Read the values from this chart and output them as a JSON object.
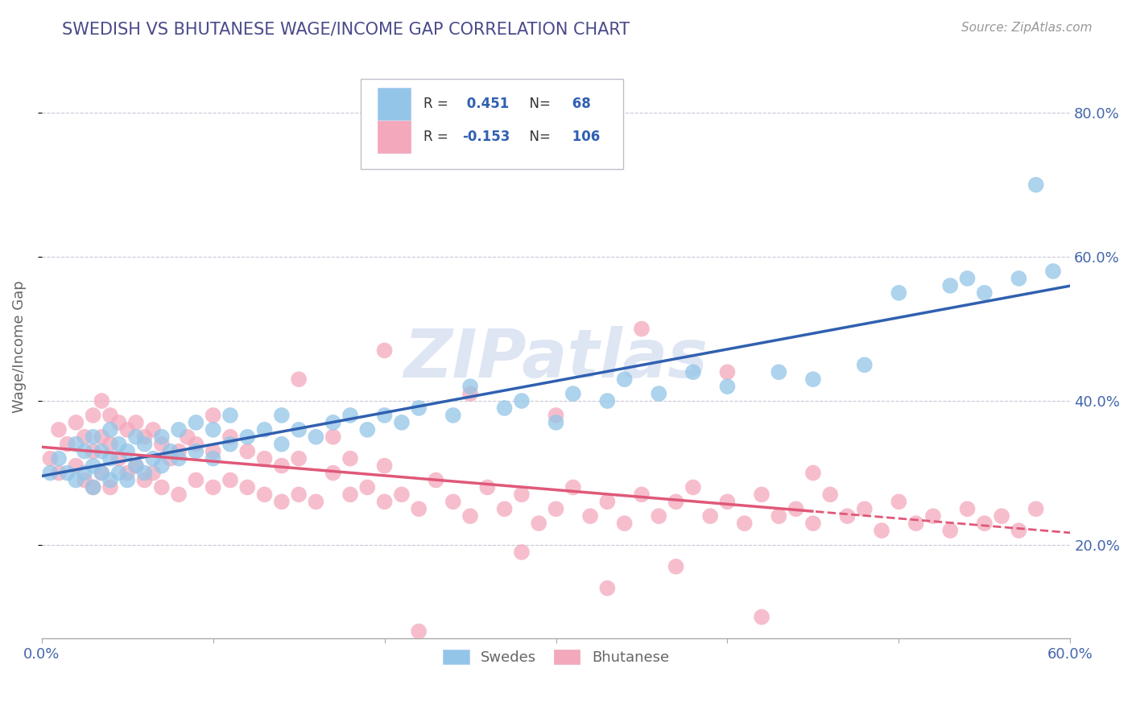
{
  "title": "SWEDISH VS BHUTANESE WAGE/INCOME GAP CORRELATION CHART",
  "source": "Source: ZipAtlas.com",
  "ylabel": "Wage/Income Gap",
  "xlim": [
    0.0,
    0.6
  ],
  "ylim": [
    0.07,
    0.88
  ],
  "yticks": [
    0.2,
    0.4,
    0.6,
    0.8
  ],
  "yticklabels": [
    "20.0%",
    "40.0%",
    "60.0%",
    "80.0%"
  ],
  "xtick_positions": [
    0.0,
    0.1,
    0.2,
    0.3,
    0.4,
    0.5,
    0.6
  ],
  "xticklabels": [
    "0.0%",
    "",
    "",
    "",
    "",
    "",
    "60.0%"
  ],
  "swedish_R": 0.451,
  "swedish_N": 68,
  "bhutanese_R": -0.153,
  "bhutanese_N": 106,
  "swedish_color": "#92C5E8",
  "bhutanese_color": "#F4A8BC",
  "swedish_line_color": "#3060B0",
  "bhutanese_line_color": "#E05878",
  "watermark": "ZIPatlas",
  "title_color": "#4A4A8A",
  "watermark_color": "#C8D4EC",
  "tick_color": "#4466AA",
  "label_color": "#666666",
  "legend_text_color": "#333333",
  "legend_val_color": "#3060B0",
  "swedish_x": [
    0.005,
    0.01,
    0.015,
    0.02,
    0.02,
    0.025,
    0.025,
    0.03,
    0.03,
    0.03,
    0.035,
    0.035,
    0.04,
    0.04,
    0.04,
    0.045,
    0.045,
    0.05,
    0.05,
    0.055,
    0.055,
    0.06,
    0.06,
    0.065,
    0.07,
    0.07,
    0.075,
    0.08,
    0.08,
    0.09,
    0.09,
    0.1,
    0.1,
    0.11,
    0.11,
    0.12,
    0.13,
    0.14,
    0.14,
    0.15,
    0.16,
    0.17,
    0.18,
    0.19,
    0.2,
    0.21,
    0.22,
    0.24,
    0.25,
    0.27,
    0.28,
    0.3,
    0.31,
    0.33,
    0.34,
    0.36,
    0.38,
    0.4,
    0.43,
    0.45,
    0.48,
    0.5,
    0.53,
    0.54,
    0.55,
    0.57,
    0.58,
    0.59
  ],
  "swedish_y": [
    0.3,
    0.32,
    0.3,
    0.29,
    0.34,
    0.3,
    0.33,
    0.28,
    0.31,
    0.35,
    0.3,
    0.33,
    0.29,
    0.32,
    0.36,
    0.3,
    0.34,
    0.29,
    0.33,
    0.31,
    0.35,
    0.3,
    0.34,
    0.32,
    0.31,
    0.35,
    0.33,
    0.32,
    0.36,
    0.33,
    0.37,
    0.32,
    0.36,
    0.34,
    0.38,
    0.35,
    0.36,
    0.34,
    0.38,
    0.36,
    0.35,
    0.37,
    0.38,
    0.36,
    0.38,
    0.37,
    0.39,
    0.38,
    0.42,
    0.39,
    0.4,
    0.37,
    0.41,
    0.4,
    0.43,
    0.41,
    0.44,
    0.42,
    0.44,
    0.43,
    0.45,
    0.55,
    0.56,
    0.57,
    0.55,
    0.57,
    0.7,
    0.58
  ],
  "bhutanese_x": [
    0.005,
    0.01,
    0.01,
    0.015,
    0.02,
    0.02,
    0.025,
    0.025,
    0.03,
    0.03,
    0.03,
    0.035,
    0.035,
    0.035,
    0.04,
    0.04,
    0.04,
    0.045,
    0.045,
    0.05,
    0.05,
    0.055,
    0.055,
    0.06,
    0.06,
    0.065,
    0.065,
    0.07,
    0.07,
    0.075,
    0.08,
    0.08,
    0.085,
    0.09,
    0.09,
    0.1,
    0.1,
    0.1,
    0.11,
    0.11,
    0.12,
    0.12,
    0.13,
    0.13,
    0.14,
    0.14,
    0.15,
    0.15,
    0.16,
    0.17,
    0.17,
    0.18,
    0.18,
    0.19,
    0.2,
    0.2,
    0.21,
    0.22,
    0.23,
    0.24,
    0.25,
    0.26,
    0.27,
    0.28,
    0.29,
    0.3,
    0.31,
    0.32,
    0.33,
    0.34,
    0.35,
    0.36,
    0.37,
    0.38,
    0.39,
    0.4,
    0.41,
    0.42,
    0.43,
    0.44,
    0.45,
    0.46,
    0.47,
    0.48,
    0.49,
    0.5,
    0.51,
    0.52,
    0.53,
    0.54,
    0.55,
    0.56,
    0.57,
    0.58,
    0.3,
    0.2,
    0.15,
    0.25,
    0.35,
    0.4,
    0.28,
    0.33,
    0.42,
    0.37,
    0.45,
    0.22
  ],
  "bhutanese_y": [
    0.32,
    0.3,
    0.36,
    0.34,
    0.31,
    0.37,
    0.29,
    0.35,
    0.28,
    0.33,
    0.38,
    0.3,
    0.35,
    0.4,
    0.28,
    0.34,
    0.38,
    0.32,
    0.37,
    0.3,
    0.36,
    0.31,
    0.37,
    0.29,
    0.35,
    0.3,
    0.36,
    0.28,
    0.34,
    0.32,
    0.27,
    0.33,
    0.35,
    0.29,
    0.34,
    0.28,
    0.33,
    0.38,
    0.29,
    0.35,
    0.28,
    0.33,
    0.27,
    0.32,
    0.26,
    0.31,
    0.27,
    0.32,
    0.26,
    0.3,
    0.35,
    0.27,
    0.32,
    0.28,
    0.26,
    0.31,
    0.27,
    0.25,
    0.29,
    0.26,
    0.24,
    0.28,
    0.25,
    0.27,
    0.23,
    0.25,
    0.28,
    0.24,
    0.26,
    0.23,
    0.27,
    0.24,
    0.26,
    0.28,
    0.24,
    0.26,
    0.23,
    0.27,
    0.24,
    0.25,
    0.23,
    0.27,
    0.24,
    0.25,
    0.22,
    0.26,
    0.23,
    0.24,
    0.22,
    0.25,
    0.23,
    0.24,
    0.22,
    0.25,
    0.38,
    0.47,
    0.43,
    0.41,
    0.5,
    0.44,
    0.19,
    0.14,
    0.1,
    0.17,
    0.3,
    0.08
  ]
}
